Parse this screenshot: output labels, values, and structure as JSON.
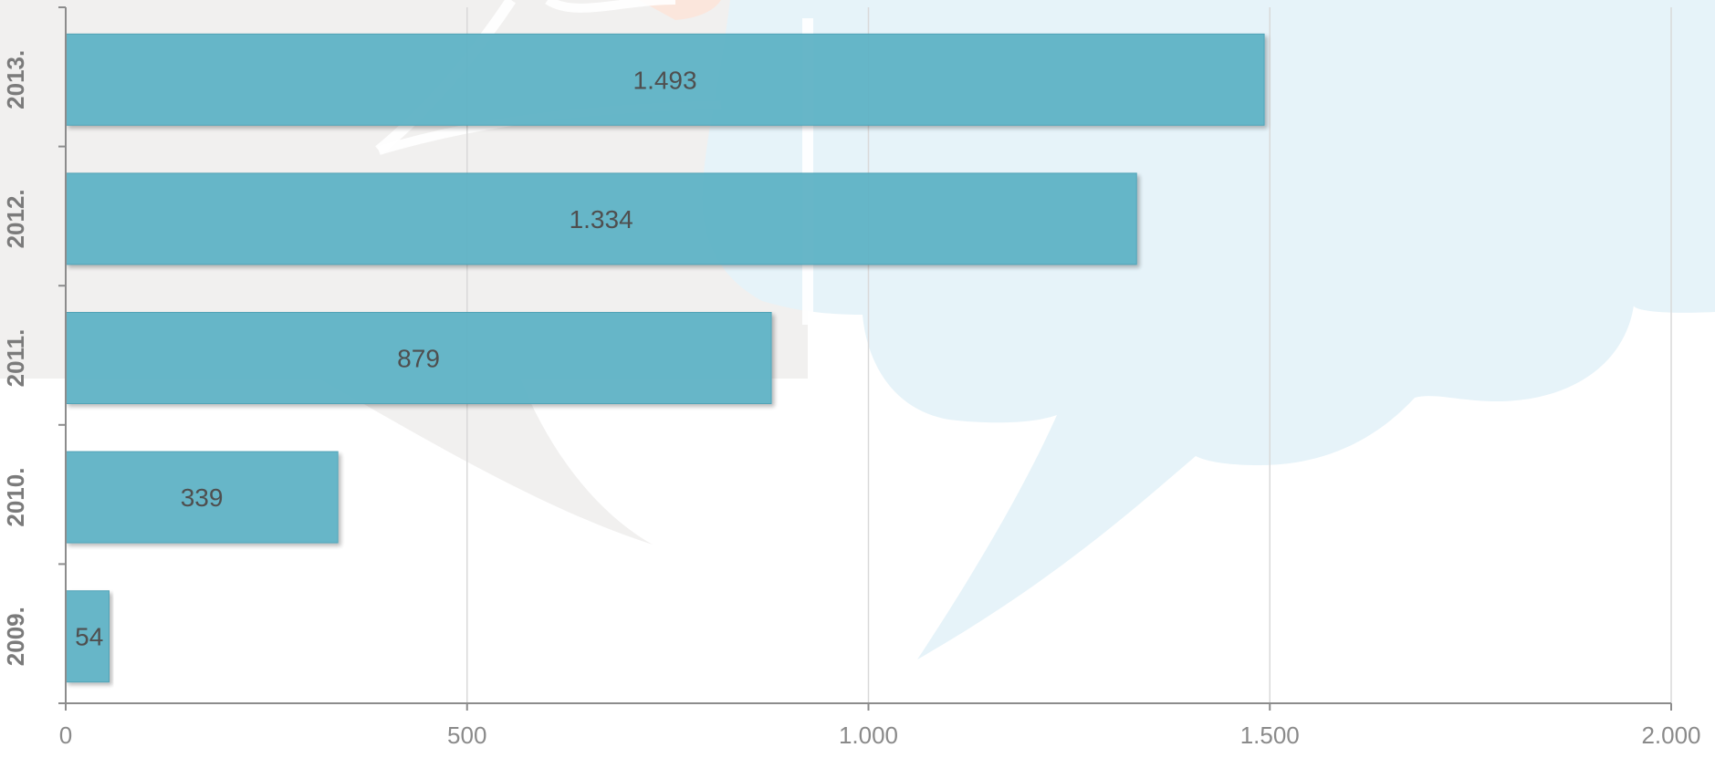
{
  "chart_data": {
    "type": "bar",
    "orientation": "horizontal",
    "categories": [
      "2013.",
      "2012.",
      "2011.",
      "2010.",
      "2009."
    ],
    "values": [
      1493,
      1334,
      879,
      339,
      54
    ],
    "data_labels": [
      "1.493",
      "1.334",
      "879",
      "339",
      "54"
    ],
    "title": "",
    "xlabel": "",
    "ylabel": "",
    "xlim": [
      0,
      2000
    ],
    "x_ticks": [
      0,
      500,
      1000,
      1500,
      2000
    ],
    "x_tick_labels": [
      "0",
      "500",
      "1.000",
      "1.500",
      "2.000"
    ],
    "grid": true,
    "legend": "none",
    "bar_color": "#5eb3c6",
    "background_watermark": "speech-bubble-logo",
    "colors": {
      "bar": "#5eb3c6",
      "bar_edge": "#4a9fb3",
      "grid": "#d9d9d9",
      "axis": "#8c8c8c",
      "watermark_blue": "#e6f3f9",
      "watermark_grey": "#f1f0ef",
      "watermark_orange": "#fbe6dc"
    }
  }
}
